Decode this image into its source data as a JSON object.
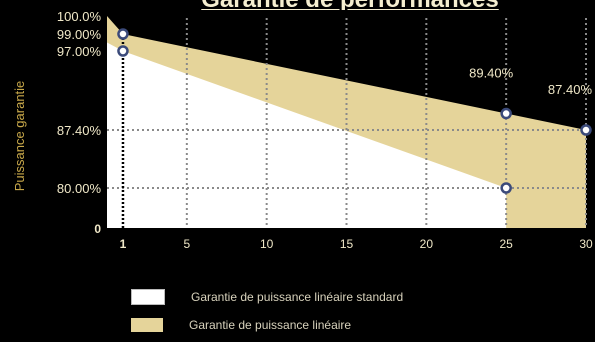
{
  "chart_data": {
    "type": "area",
    "title": "Garantie de performances",
    "xlabel": "",
    "ylabel": "Puissance garantie",
    "x_ticks": [
      "1",
      "5",
      "10",
      "15",
      "20",
      "25",
      "30"
    ],
    "y_ticks": [
      "100.0%",
      "99.00%",
      "97.00%",
      "87.40%",
      "80.00%",
      "0"
    ],
    "xlim": [
      0,
      30
    ],
    "series": [
      {
        "name": "Garantie de puissance linéaire standard",
        "x": [
          1,
          25
        ],
        "y": [
          97.0,
          80.0
        ],
        "color": "#ffffff"
      },
      {
        "name": "Garantie de puissance linéaire",
        "x": [
          1,
          25,
          30
        ],
        "y": [
          99.0,
          89.4,
          87.4
        ],
        "color": "#e5d49a"
      }
    ],
    "annotations": [
      {
        "text": "89.40%",
        "x": 25,
        "y": 89.4
      },
      {
        "text": "87.40%",
        "x": 30,
        "y": 87.4
      }
    ],
    "grid": true,
    "legend_position": "bottom"
  },
  "colors": {
    "background": "#000000",
    "linear_fill": "#e5d49a",
    "standard_fill": "#ffffff",
    "grid": "#8a8a8a",
    "marker_stroke": "#3b4a7a",
    "axis_text": "#f0e8c8",
    "ylabel_text": "#c8a84a"
  }
}
